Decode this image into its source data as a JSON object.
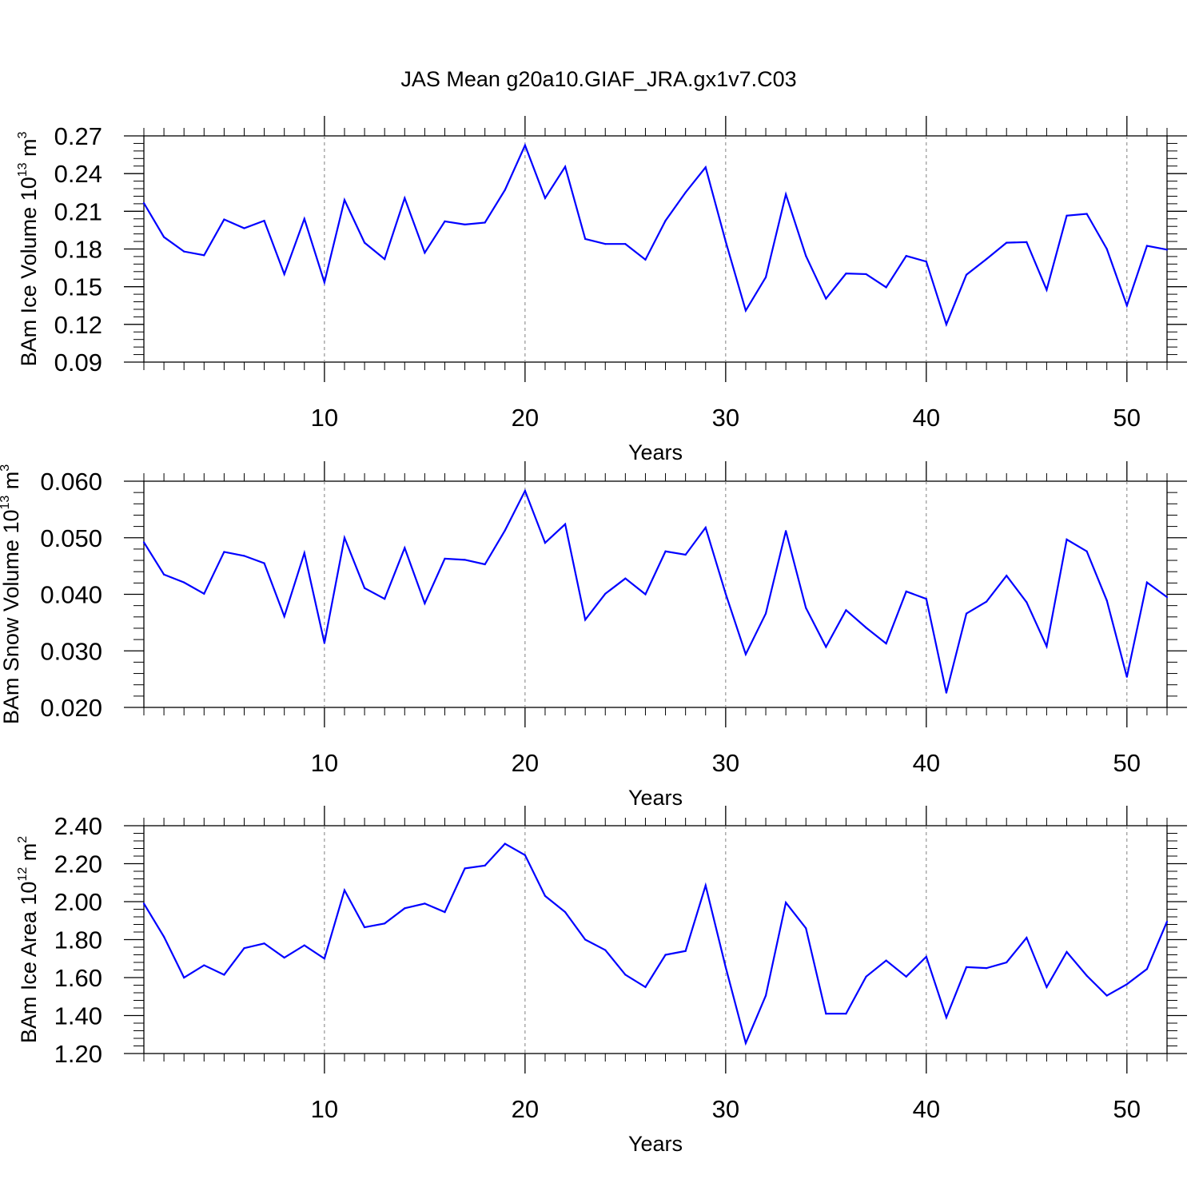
{
  "figure_title": "JAS Mean g20a10.GIAF_JRA.gx1v7.C03",
  "colors": {
    "line": "#0000ff",
    "axis": "#000000",
    "grid": "#808080"
  },
  "chart_data": [
    {
      "type": "line",
      "title": "JAS Mean g20a10.GIAF_JRA.gx1v7.C03",
      "xlabel": "Years",
      "ylabel": {
        "text": "BAm Ice Volume 10",
        "exp1": "13",
        "mid": " m",
        "exp2": "3"
      },
      "xlim": [
        1,
        52
      ],
      "ylim": [
        0.09,
        0.27
      ],
      "xticks": [
        10,
        20,
        30,
        40,
        50
      ],
      "yticks": [
        "0.09",
        "0.12",
        "0.15",
        "0.18",
        "0.21",
        "0.24",
        "0.27"
      ],
      "x": [
        1,
        2,
        3,
        4,
        5,
        6,
        7,
        8,
        9,
        10,
        11,
        12,
        13,
        14,
        15,
        16,
        17,
        18,
        19,
        20,
        21,
        22,
        23,
        24,
        25,
        26,
        27,
        28,
        29,
        30,
        31,
        32,
        33,
        34,
        35,
        36,
        37,
        38,
        39,
        40,
        41,
        42,
        43,
        44,
        45,
        46,
        47,
        48,
        49,
        50,
        51,
        52
      ],
      "series": [
        {
          "name": "Ice Volume",
          "values": [
            0.2165,
            0.1895,
            0.178,
            0.175,
            0.2035,
            0.1965,
            0.2025,
            0.16,
            0.204,
            0.1535,
            0.219,
            0.185,
            0.172,
            0.2205,
            0.177,
            0.202,
            0.1995,
            0.201,
            0.227,
            0.2625,
            0.2205,
            0.2455,
            0.188,
            0.184,
            0.184,
            0.1715,
            0.2025,
            0.225,
            0.245,
            0.186,
            0.131,
            0.1575,
            0.2235,
            0.1745,
            0.1405,
            0.1605,
            0.16,
            0.1495,
            0.1745,
            0.17,
            0.12,
            0.1595,
            0.172,
            0.185,
            0.1855,
            0.1475,
            0.2065,
            0.208,
            0.18,
            0.135,
            0.1825,
            0.1795
          ]
        }
      ]
    },
    {
      "type": "line",
      "xlabel": "Years",
      "ylabel": {
        "text": "BAm Snow Volume 10",
        "exp1": "13",
        "mid": " m",
        "exp2": "3"
      },
      "xlim": [
        1,
        52
      ],
      "ylim": [
        0.02,
        0.06
      ],
      "xticks": [
        10,
        20,
        30,
        40,
        50
      ],
      "yticks": [
        "0.020",
        "0.030",
        "0.040",
        "0.050",
        "0.060"
      ],
      "x": [
        1,
        2,
        3,
        4,
        5,
        6,
        7,
        8,
        9,
        10,
        11,
        12,
        13,
        14,
        15,
        16,
        17,
        18,
        19,
        20,
        21,
        22,
        23,
        24,
        25,
        26,
        27,
        28,
        29,
        30,
        31,
        32,
        33,
        34,
        35,
        36,
        37,
        38,
        39,
        40,
        41,
        42,
        43,
        44,
        45,
        46,
        47,
        48,
        49,
        50,
        51,
        52
      ],
      "series": [
        {
          "name": "Snow Volume",
          "values": [
            0.0492,
            0.0435,
            0.0421,
            0.0401,
            0.0475,
            0.0468,
            0.0455,
            0.0361,
            0.0473,
            0.0314,
            0.05,
            0.0411,
            0.0392,
            0.0482,
            0.0384,
            0.0463,
            0.0461,
            0.0453,
            0.0513,
            0.0583,
            0.0491,
            0.0524,
            0.0355,
            0.0401,
            0.0428,
            0.04,
            0.0476,
            0.047,
            0.0518,
            0.0401,
            0.0294,
            0.0366,
            0.0512,
            0.0376,
            0.0307,
            0.0372,
            0.0341,
            0.0313,
            0.0405,
            0.0392,
            0.0226,
            0.0366,
            0.0387,
            0.0433,
            0.0386,
            0.0308,
            0.0497,
            0.0476,
            0.0389,
            0.0254,
            0.0421,
            0.0395
          ]
        }
      ]
    },
    {
      "type": "line",
      "xlabel": "Years",
      "ylabel": {
        "text": "BAm Ice Area 10",
        "exp1": "12",
        "mid": " m",
        "exp2": "2"
      },
      "xlim": [
        1,
        52
      ],
      "ylim": [
        1.2,
        2.4
      ],
      "xticks": [
        10,
        20,
        30,
        40,
        50
      ],
      "yticks": [
        "1.20",
        "1.40",
        "1.60",
        "1.80",
        "2.00",
        "2.20",
        "2.40"
      ],
      "x": [
        1,
        2,
        3,
        4,
        5,
        6,
        7,
        8,
        9,
        10,
        11,
        12,
        13,
        14,
        15,
        16,
        17,
        18,
        19,
        20,
        21,
        22,
        23,
        24,
        25,
        26,
        27,
        28,
        29,
        30,
        31,
        32,
        33,
        34,
        35,
        36,
        37,
        38,
        39,
        40,
        41,
        42,
        43,
        44,
        45,
        46,
        47,
        48,
        49,
        50,
        51,
        52
      ],
      "series": [
        {
          "name": "Ice Area",
          "values": [
            1.99,
            1.815,
            1.6,
            1.665,
            1.615,
            1.755,
            1.78,
            1.705,
            1.77,
            1.7,
            2.06,
            1.865,
            1.885,
            1.965,
            1.99,
            1.945,
            2.175,
            2.19,
            2.305,
            2.245,
            2.03,
            1.945,
            1.8,
            1.745,
            1.615,
            1.55,
            1.72,
            1.74,
            2.085,
            1.655,
            1.255,
            1.505,
            1.995,
            1.86,
            1.41,
            1.41,
            1.605,
            1.69,
            1.605,
            1.71,
            1.39,
            1.655,
            1.65,
            1.68,
            1.81,
            1.55,
            1.735,
            1.61,
            1.505,
            1.565,
            1.645,
            1.895
          ]
        }
      ]
    }
  ]
}
